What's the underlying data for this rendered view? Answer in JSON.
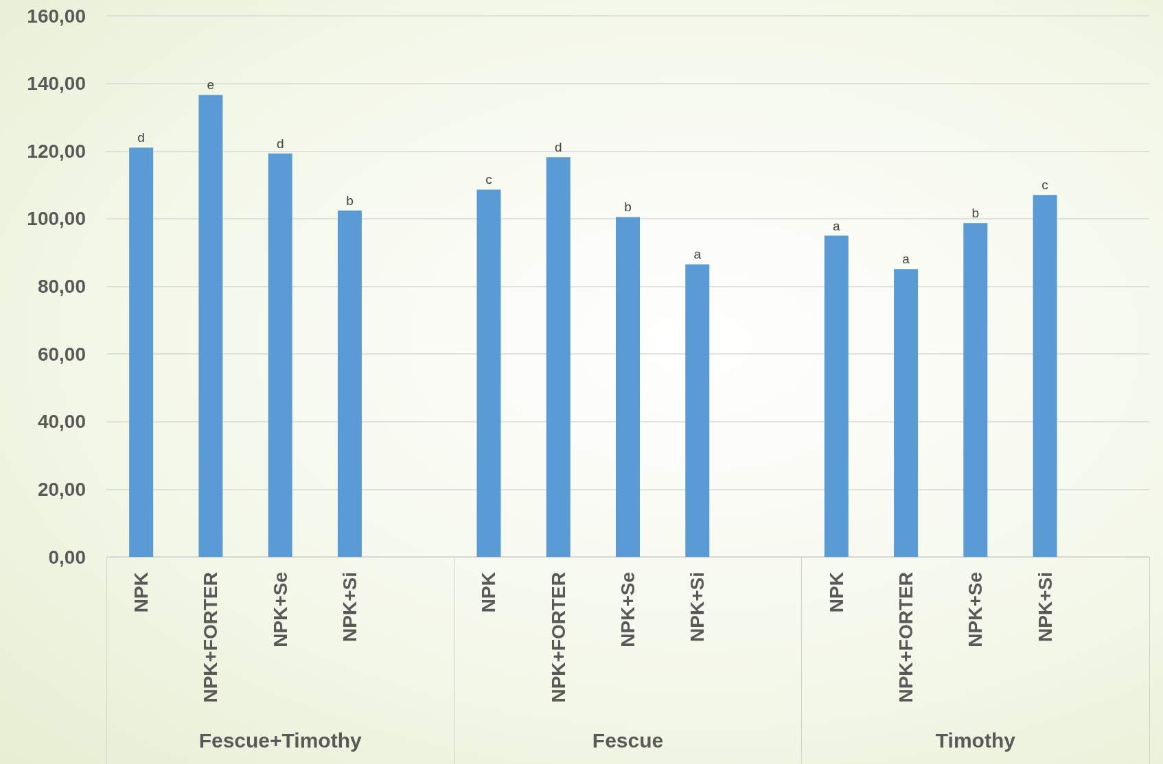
{
  "chart_data": {
    "type": "bar",
    "categories": [
      "NPK",
      "NPK+FORTER",
      "NPK+Se",
      "NPK+Si",
      null,
      "NPK",
      "NPK+FORTER",
      "NPK+Se",
      "NPK+Si",
      null,
      "NPK",
      "NPK+FORTER",
      "NPK+Se",
      "NPK+Si",
      null
    ],
    "values": [
      121.0,
      136.6,
      119.3,
      102.4,
      null,
      108.6,
      118.2,
      100.5,
      86.5,
      null,
      95.0,
      85.1,
      98.7,
      107.0,
      null
    ],
    "value_labels": [
      "d",
      "e",
      "d",
      "b",
      null,
      "c",
      "d",
      "b",
      "a",
      null,
      "a",
      "a",
      "b",
      "c",
      null
    ],
    "color": "#5b9bd5",
    "annotations": [
      "Fescue+Timothy",
      "Fescue",
      "Timothy"
    ],
    "ylim": [
      0,
      160
    ],
    "yticks": [
      {
        "value": 0,
        "label": "0,00"
      },
      {
        "value": 20,
        "label": "20,00"
      },
      {
        "value": 40,
        "label": "40,00"
      },
      {
        "value": 60,
        "label": "60,00"
      },
      {
        "value": 80,
        "label": "80,00"
      },
      {
        "value": 100,
        "label": "100,00"
      },
      {
        "value": 120,
        "label": "120,00"
      },
      {
        "value": 140,
        "label": "140,00"
      },
      {
        "value": 160,
        "label": "160,00"
      }
    ],
    "grid": "y"
  }
}
